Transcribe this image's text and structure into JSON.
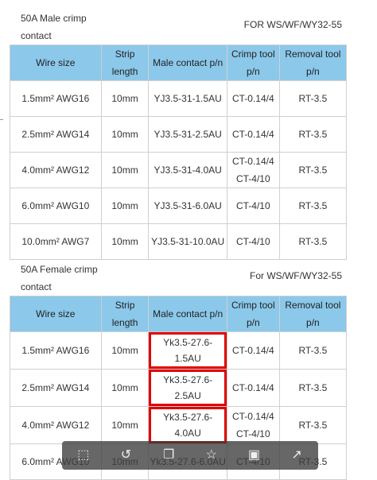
{
  "male": {
    "title": "50A Male crimp contact",
    "right": "FOR WS/WF/WY32-55",
    "headers": [
      "Wire size",
      "Strip length",
      "Male contact p/n",
      "Crimp tool p/n",
      "Removal tool p/n"
    ],
    "rows": [
      [
        "1.5mm² AWG16",
        "10mm",
        "YJ3.5-31-1.5AU",
        "CT-0.14/4",
        "RT-3.5"
      ],
      [
        "2.5mm² AWG14",
        "10mm",
        "YJ3.5-31-2.5AU",
        "CT-0.14/4",
        "RT-3.5"
      ],
      [
        "4.0mm² AWG12",
        "10mm",
        "YJ3.5-31-4.0AU",
        "CT-0.14/4 CT-4/10",
        "RT-3.5"
      ],
      [
        "6.0mm² AWG10",
        "10mm",
        "YJ3.5-31-6.0AU",
        "CT-4/10",
        "RT-3.5"
      ],
      [
        "10.0mm² AWG7",
        "10mm",
        "YJ3.5-31-10.0AU",
        "CT-4/10",
        "RT-3.5"
      ]
    ]
  },
  "female": {
    "title": "50A Female crimp contact",
    "right": "For WS/WF/WY32-55",
    "headers": [
      "Wire size",
      "Strip length",
      "Male contact p/n",
      "Crimp tool p/n",
      "Removal tool p/n"
    ],
    "rows": [
      [
        "1.5mm² AWG16",
        "10mm",
        "Yk3.5-27.6-1.5AU",
        "CT-0.14/4",
        "RT-3.5"
      ],
      [
        "2.5mm² AWG14",
        "10mm",
        "Yk3.5-27.6-2.5AU",
        "CT-0.14/4",
        "RT-3.5"
      ],
      [
        "4.0mm² AWG12",
        "10mm",
        "Yk3.5-27.6-4.0AU",
        "CT-0.14/4 CT-4/10",
        "RT-3.5"
      ],
      [
        "6.0mm² AWG10",
        "10mm",
        "Yk3.5-27.6-6.0AU",
        "CT-4/10",
        "RT-3.5"
      ]
    ]
  },
  "toolbar": {
    "icons": [
      "crop-icon",
      "rotate-icon",
      "copy-icon",
      "star-icon",
      "gallery-icon",
      "share-icon"
    ]
  }
}
